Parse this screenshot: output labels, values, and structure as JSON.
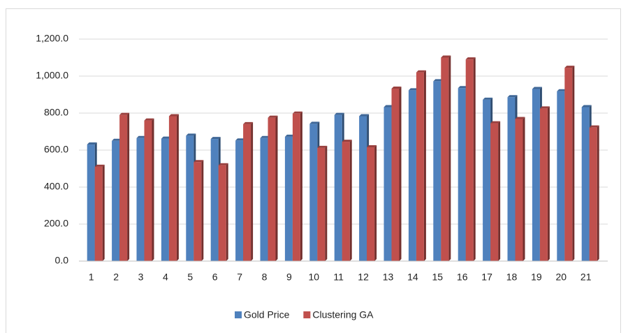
{
  "chart_data": {
    "type": "bar",
    "categories": [
      "1",
      "2",
      "3",
      "4",
      "5",
      "6",
      "7",
      "8",
      "9",
      "10",
      "11",
      "12",
      "13",
      "14",
      "15",
      "16",
      "17",
      "18",
      "19",
      "20",
      "21"
    ],
    "series": [
      {
        "name": "Gold Price",
        "color": "#4f81bd",
        "values": [
          630,
          650,
          665,
          662,
          678,
          660,
          652,
          665,
          672,
          742,
          790,
          783,
          832,
          923,
          972,
          935,
          872,
          886,
          930,
          918,
          832
        ]
      },
      {
        "name": "Clustering GA",
        "color": "#c0504d",
        "values": [
          510,
          790,
          760,
          783,
          535,
          518,
          740,
          775,
          797,
          612,
          645,
          615,
          932,
          1020,
          1100,
          1090,
          745,
          768,
          825,
          1045,
          722
        ]
      }
    ],
    "ylim": [
      0,
      1200
    ],
    "yticks": [
      {
        "value": 0,
        "label": "0.0"
      },
      {
        "value": 200,
        "label": "200.0"
      },
      {
        "value": 400,
        "label": "400.0"
      },
      {
        "value": 600,
        "label": "600.0"
      },
      {
        "value": 800,
        "label": "800.0"
      },
      {
        "value": 1000,
        "label": "1,000.0"
      },
      {
        "value": 1200,
        "label": "1,200.0"
      }
    ],
    "grid": true,
    "legend": "bottom"
  }
}
